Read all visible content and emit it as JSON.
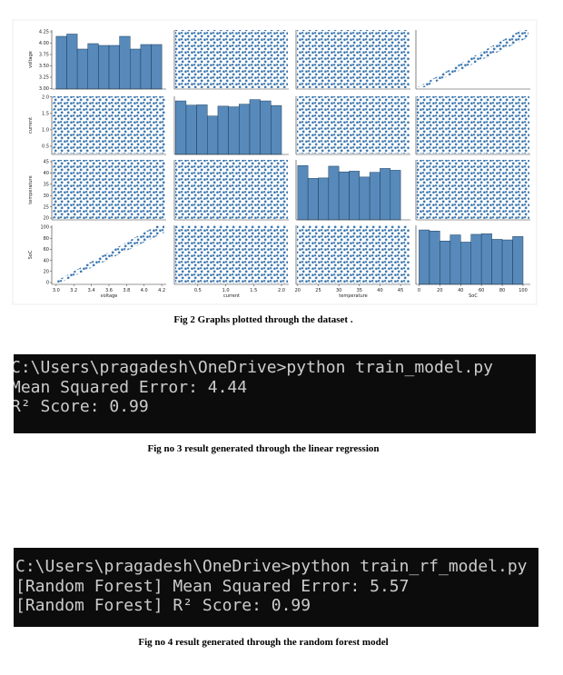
{
  "figure": {
    "pairplot": {
      "type": "pairplot",
      "color": "#3a76ae",
      "variables": [
        "voltage",
        "current",
        "temperature",
        "SoC"
      ],
      "axes": [
        {
          "ylim": [
            2.99,
            4.29
          ],
          "yticks": [
            {
              "value": 3,
              "label": "3.00"
            },
            {
              "value": 3.25,
              "label": "3.25"
            },
            {
              "value": 3.5,
              "label": "3.50"
            },
            {
              "value": 3.75,
              "label": "3.75"
            },
            {
              "value": 4,
              "label": "4.00"
            },
            {
              "value": 4.25,
              "label": "4.25"
            }
          ],
          "xlim": [
            2.95,
            4.25
          ],
          "xticks": [
            {
              "value": 3,
              "label": "3.0"
            },
            3.2,
            3.4,
            3.6,
            3.8,
            {
              "value": 4,
              "label": "4.0"
            },
            4.2
          ]
        },
        {
          "ylim": [
            0.25,
            2.02
          ],
          "yticks": [
            0.5,
            {
              "value": 1,
              "label": "1.0"
            },
            1.5,
            {
              "value": 2,
              "label": "2.0"
            }
          ],
          "xlim": [
            0.08,
            2.13
          ],
          "xticks": [
            0.5,
            {
              "value": 1,
              "label": "1.0"
            },
            1.5,
            {
              "value": 2,
              "label": "2.0"
            }
          ]
        },
        {
          "ylim": [
            19.2,
            45.8
          ],
          "yticks": [
            20,
            25,
            30,
            35,
            40,
            45
          ],
          "xlim": [
            19.6,
            47.4
          ],
          "xticks": [
            20,
            25,
            30,
            35,
            40,
            45
          ]
        },
        {
          "ylim": [
            -3.3,
            103.3
          ],
          "yticks": [
            0,
            20,
            40,
            60,
            80,
            100
          ],
          "xlim": [
            -3,
            107
          ],
          "xticks": [
            0,
            20,
            40,
            60,
            80,
            100
          ]
        }
      ],
      "histograms": [
        {
          "bins": [
            3.0,
            3.12,
            3.24,
            3.36,
            3.48,
            3.6,
            3.72,
            3.84,
            3.96,
            4.08,
            4.2
          ],
          "values": [
            4.15,
            4.2,
            3.87,
            3.99,
            3.95,
            3.95,
            4.15,
            3.87,
            3.97,
            3.97
          ]
        },
        {
          "bins": [
            0.1,
            0.29,
            0.48,
            0.67,
            0.86,
            1.05,
            1.24,
            1.43,
            1.62,
            1.81,
            2.0
          ],
          "values": [
            1.88,
            1.75,
            1.76,
            1.42,
            1.72,
            1.7,
            1.78,
            1.92,
            1.88,
            1.74
          ]
        },
        {
          "bins": [
            20,
            22.5,
            25,
            27.5,
            30,
            32.5,
            35,
            37.5,
            40,
            42.5,
            45
          ],
          "values": [
            43.3,
            37.6,
            37.8,
            43,
            40.5,
            40.8,
            38.2,
            40.3,
            42,
            41.2
          ]
        },
        {
          "bins": [
            0,
            10,
            20,
            30,
            40,
            50,
            60,
            70,
            80,
            90,
            100
          ],
          "values": [
            95,
            93,
            75,
            86,
            73,
            87,
            88,
            78,
            77,
            83
          ]
        }
      ]
    },
    "caption": "Fig 2 Graphs plotted through the dataset ."
  },
  "terminal_1": {
    "lines": [
      "C:\\Users\\pragadesh\\OneDrive>python train_model.py",
      "Mean Squared Error: 4.44",
      "R² Score: 0.99"
    ],
    "caption": "Fig no 3 result generated through the linear regression"
  },
  "terminal_2": {
    "lines": [
      "C:\\Users\\pragadesh\\OneDrive>python train_rf_model.py",
      "[Random Forest] Mean Squared Error: 5.57",
      "[Random Forest] R² Score: 0.99"
    ],
    "caption": "Fig no 4 result generated through the random forest model"
  }
}
